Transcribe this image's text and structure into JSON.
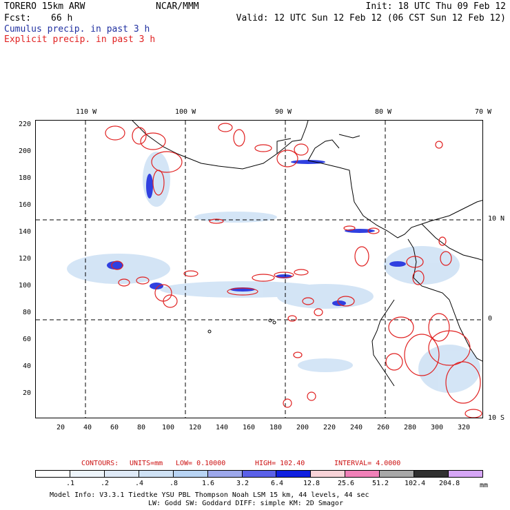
{
  "header": {
    "model_name": "TORERO  15km ARW",
    "org": "NCAR/MMM",
    "init": "Init: 18 UTC Thu 09 Feb 12",
    "fcst_label": "Fcst:",
    "fcst_value": "66 h",
    "valid": "Valid: 12 UTC Sun 12 Feb 12 (06 CST Sun 12 Feb 12)",
    "cumulus_label": "Cumulus precip. in past 3 h",
    "explicit_label": "Explicit precip. in past 3 h"
  },
  "colors": {
    "cumulus": "#2030a0",
    "explicit": "#e02020",
    "contour_text": "#cc1010"
  },
  "axes": {
    "top_lon_labels": [
      "110 W",
      "100 W",
      "90 W",
      "80 W",
      "70 W"
    ],
    "right_lat_labels": [
      "10 N",
      "0",
      "10 S"
    ],
    "left_ticks": [
      "220",
      "200",
      "180",
      "160",
      "140",
      "120",
      "100",
      "80",
      "60",
      "40",
      "20"
    ],
    "bottom_ticks": [
      "20",
      "40",
      "60",
      "80",
      "100",
      "120",
      "140",
      "160",
      "180",
      "200",
      "220",
      "240",
      "260",
      "280",
      "300",
      "320"
    ]
  },
  "contours": {
    "label": "CONTOURS:",
    "units": "UNITS=mm",
    "low": "LOW= 0.10000",
    "high": "HIGH= 102.40",
    "interval": "INTERVAL= 4.0000"
  },
  "legend": {
    "values": [
      ".1",
      ".2",
      ".4",
      ".8",
      "1.6",
      "3.2",
      "6.4",
      "12.8",
      "25.6",
      "51.2",
      "102.4",
      "204.8"
    ],
    "units": "mm",
    "colors": [
      "#ffffff",
      "#eef5fb",
      "#dfeaf7",
      "#cfe2f5",
      "#b8d4f4",
      "#9da8ec",
      "#5a60e8",
      "#1020e0",
      "#f8d3d8",
      "#f080b8",
      "#a8a8a8",
      "#303030",
      "#d6a6f6"
    ]
  },
  "model_info": {
    "line1": "Model Info: V3.3.1    Tiedtke YSU PBL  Thompson     Noah LSM  15 km,    44 levels,    44 sec",
    "line2": "LW: Godd SW: Goddard DIFF: simple KM: 2D Smagor"
  }
}
